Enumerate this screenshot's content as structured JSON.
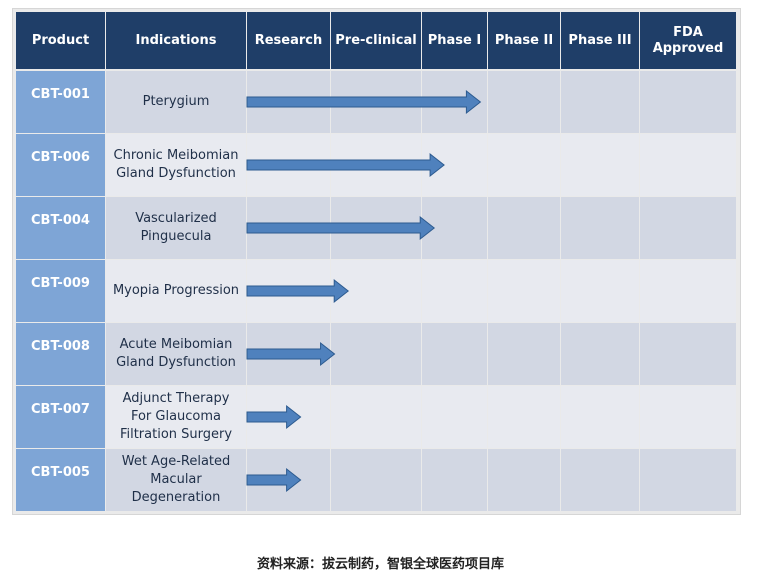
{
  "table": {
    "headers": [
      "Product",
      "Indications",
      "Research",
      "Pre-clinical",
      "Phase I",
      "Phase II",
      "Phase III",
      "FDA\nApproved"
    ],
    "rows": [
      {
        "product": "CBT-001",
        "indication": "Pterygium",
        "stage_reached": 2.9
      },
      {
        "product": "CBT-006",
        "indication": "Chronic Meibomian\nGland Dysfunction",
        "stage_reached": 2.35
      },
      {
        "product": "CBT-004",
        "indication": "Vascularized\nPinguecula",
        "stage_reached": 2.2
      },
      {
        "product": "CBT-009",
        "indication": "Myopia Progression",
        "stage_reached": 1.2
      },
      {
        "product": "CBT-008",
        "indication": "Acute Meibomian\nGland Dysfunction",
        "stage_reached": 1.05
      },
      {
        "product": "CBT-007",
        "indication": "Adjunct Therapy\nFor Glaucoma\nFiltration Surgery",
        "stage_reached": 0.65
      },
      {
        "product": "CBT-005",
        "indication": "Wet Age-Related\nMacular\nDegeneration",
        "stage_reached": 0.65
      }
    ]
  },
  "colors": {
    "header_bg": "#1f3e68",
    "product_bg": "#7ea5d6",
    "row_dark": "#d2d7e3",
    "row_light": "#e8eaf0",
    "arrow_fill": "#4f81bd",
    "arrow_stroke": "#2c5a8f"
  },
  "caption": "资料来源：拔云制药，智银全球医药项目库"
}
